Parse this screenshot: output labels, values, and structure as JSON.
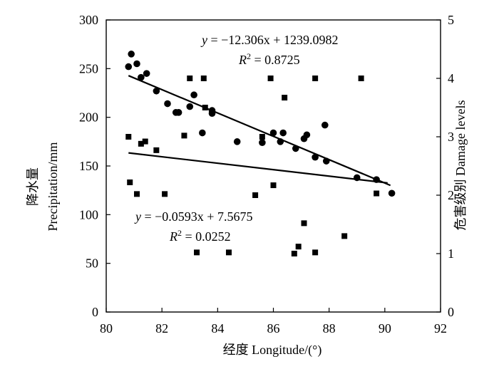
{
  "chart_data": {
    "type": "scatter",
    "xlabel": "经度 Longitude/(°)",
    "ylabel_left": "降水量\nPrecipitation/mm",
    "ylabel_right": "危害级别 Damage levels",
    "xlim": [
      80,
      92
    ],
    "ylim_left": [
      0,
      300
    ],
    "ylim_right": [
      0,
      5
    ],
    "x_ticks": [
      80,
      82,
      84,
      86,
      88,
      90,
      92
    ],
    "y_left_ticks": [
      0,
      50,
      100,
      150,
      200,
      250,
      300
    ],
    "y_right_ticks": [
      0,
      1,
      2,
      3,
      4,
      5
    ],
    "series": [
      {
        "marker": "circle",
        "axis": "left",
        "points": [
          [
            80.8,
            252
          ],
          [
            80.9,
            265
          ],
          [
            81.1,
            255
          ],
          [
            81.25,
            241
          ],
          [
            81.45,
            245
          ],
          [
            81.8,
            227
          ],
          [
            82.2,
            214
          ],
          [
            82.5,
            205
          ],
          [
            82.6,
            205
          ],
          [
            83.0,
            211
          ],
          [
            83.15,
            223
          ],
          [
            83.45,
            184
          ],
          [
            83.8,
            204
          ],
          [
            83.8,
            207
          ],
          [
            84.7,
            175
          ],
          [
            85.6,
            174
          ],
          [
            86.0,
            184
          ],
          [
            86.25,
            175
          ],
          [
            86.35,
            184
          ],
          [
            86.8,
            168
          ],
          [
            87.1,
            178
          ],
          [
            87.2,
            182
          ],
          [
            87.5,
            159
          ],
          [
            87.85,
            192
          ],
          [
            87.9,
            155
          ],
          [
            89.0,
            138
          ],
          [
            89.7,
            136
          ],
          [
            90.25,
            122
          ]
        ],
        "trendline": {
          "x": [
            80.8,
            90.2
          ],
          "label_lines": [
            "y = −12.306x + 1239.0982",
            "R2 = 0.8725"
          ]
        }
      },
      {
        "marker": "square",
        "axis": "right",
        "points": [
          [
            80.8,
            3.0
          ],
          [
            80.85,
            2.22
          ],
          [
            81.1,
            2.02
          ],
          [
            81.25,
            2.88
          ],
          [
            81.4,
            2.92
          ],
          [
            81.8,
            2.77
          ],
          [
            82.1,
            2.02
          ],
          [
            82.8,
            3.02
          ],
          [
            83.0,
            4.0
          ],
          [
            83.25,
            1.02
          ],
          [
            83.5,
            4.0
          ],
          [
            83.55,
            3.5
          ],
          [
            84.4,
            1.02
          ],
          [
            85.35,
            2.0
          ],
          [
            85.6,
            3.0
          ],
          [
            85.9,
            4.0
          ],
          [
            86.0,
            2.17
          ],
          [
            86.4,
            3.67
          ],
          [
            86.75,
            1.0
          ],
          [
            86.9,
            1.12
          ],
          [
            87.1,
            1.52
          ],
          [
            87.5,
            1.02
          ],
          [
            87.5,
            4.0
          ],
          [
            88.55,
            1.3
          ],
          [
            89.15,
            4.0
          ],
          [
            89.7,
            2.03
          ]
        ],
        "trendline": {
          "x": [
            80.8,
            90.1
          ],
          "label_lines": [
            "y = −0.0593x + 7.5675",
            "R2 = 0.0252"
          ]
        }
      }
    ]
  }
}
